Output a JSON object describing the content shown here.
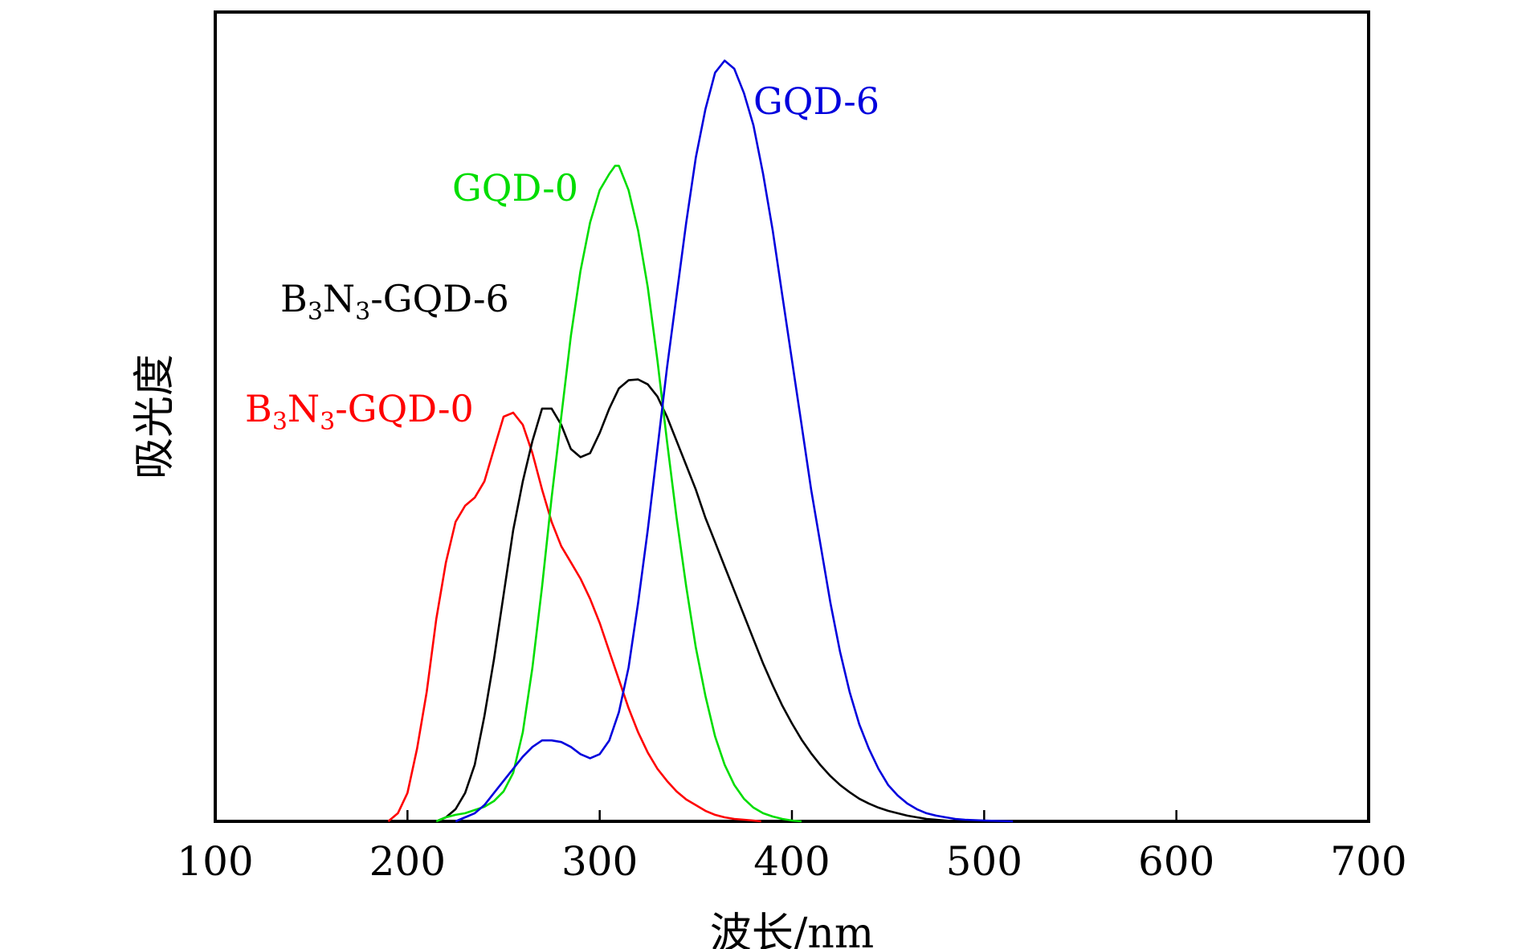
{
  "chart_data": {
    "type": "line",
    "xlabel": "波长/nm",
    "ylabel": "吸光度",
    "xlim": [
      100,
      700
    ],
    "ylim": [
      0,
      1.0
    ],
    "x_ticks": [
      "100",
      "200",
      "300",
      "400",
      "500",
      "600",
      "700"
    ],
    "y_ticks_shown": false,
    "grid": false,
    "series": [
      {
        "key": "b3n3_gqd0",
        "label": {
          "main1": "B",
          "sub1": "3",
          "main2": "N",
          "sub2": "3",
          "main3": "-GQD-0"
        },
        "color": "#ff0000",
        "points": [
          [
            190,
            0
          ],
          [
            195,
            0.01
          ],
          [
            200,
            0.035
          ],
          [
            205,
            0.09
          ],
          [
            210,
            0.16
          ],
          [
            215,
            0.25
          ],
          [
            220,
            0.32
          ],
          [
            225,
            0.37
          ],
          [
            230,
            0.39
          ],
          [
            235,
            0.4
          ],
          [
            240,
            0.42
          ],
          [
            245,
            0.46
          ],
          [
            250,
            0.5
          ],
          [
            255,
            0.505
          ],
          [
            260,
            0.49
          ],
          [
            265,
            0.455
          ],
          [
            270,
            0.41
          ],
          [
            275,
            0.37
          ],
          [
            280,
            0.34
          ],
          [
            285,
            0.32
          ],
          [
            290,
            0.3
          ],
          [
            295,
            0.275
          ],
          [
            300,
            0.245
          ],
          [
            305,
            0.21
          ],
          [
            310,
            0.175
          ],
          [
            315,
            0.14
          ],
          [
            320,
            0.11
          ],
          [
            325,
            0.085
          ],
          [
            330,
            0.065
          ],
          [
            335,
            0.05
          ],
          [
            340,
            0.037
          ],
          [
            345,
            0.027
          ],
          [
            350,
            0.02
          ],
          [
            355,
            0.013
          ],
          [
            360,
            0.008
          ],
          [
            365,
            0.005
          ],
          [
            370,
            0.003
          ],
          [
            375,
            0.002
          ],
          [
            380,
            0.001
          ],
          [
            384,
            0
          ]
        ]
      },
      {
        "key": "b3n3_gqd6",
        "label": {
          "main1": "B",
          "sub1": "3",
          "main2": "N",
          "sub2": "3",
          "main3": "-GQD-6"
        },
        "color": "#000000",
        "points": [
          [
            215,
            0
          ],
          [
            220,
            0.005
          ],
          [
            225,
            0.015
          ],
          [
            230,
            0.035
          ],
          [
            235,
            0.07
          ],
          [
            240,
            0.13
          ],
          [
            245,
            0.2
          ],
          [
            250,
            0.28
          ],
          [
            255,
            0.36
          ],
          [
            260,
            0.42
          ],
          [
            265,
            0.47
          ],
          [
            270,
            0.51
          ],
          [
            275,
            0.51
          ],
          [
            280,
            0.49
          ],
          [
            285,
            0.46
          ],
          [
            290,
            0.45
          ],
          [
            295,
            0.455
          ],
          [
            300,
            0.48
          ],
          [
            305,
            0.51
          ],
          [
            310,
            0.535
          ],
          [
            315,
            0.545
          ],
          [
            320,
            0.546
          ],
          [
            325,
            0.54
          ],
          [
            330,
            0.525
          ],
          [
            335,
            0.5
          ],
          [
            340,
            0.47
          ],
          [
            345,
            0.44
          ],
          [
            350,
            0.41
          ],
          [
            355,
            0.375
          ],
          [
            360,
            0.345
          ],
          [
            365,
            0.315
          ],
          [
            370,
            0.285
          ],
          [
            375,
            0.255
          ],
          [
            380,
            0.225
          ],
          [
            385,
            0.195
          ],
          [
            390,
            0.168
          ],
          [
            395,
            0.143
          ],
          [
            400,
            0.121
          ],
          [
            405,
            0.101
          ],
          [
            410,
            0.084
          ],
          [
            415,
            0.069
          ],
          [
            420,
            0.056
          ],
          [
            425,
            0.045
          ],
          [
            430,
            0.036
          ],
          [
            435,
            0.028
          ],
          [
            440,
            0.022
          ],
          [
            445,
            0.017
          ],
          [
            450,
            0.013
          ],
          [
            455,
            0.01
          ],
          [
            460,
            0.007
          ],
          [
            465,
            0.005
          ],
          [
            470,
            0.003
          ],
          [
            475,
            0.002
          ],
          [
            480,
            0.001
          ],
          [
            485,
            0
          ]
        ]
      },
      {
        "key": "gqd0",
        "label": {
          "main1": "GQD-0"
        },
        "color": "#00dd00",
        "points": [
          [
            215,
            0
          ],
          [
            220,
            0.005
          ],
          [
            225,
            0.008
          ],
          [
            230,
            0.01
          ],
          [
            235,
            0.014
          ],
          [
            240,
            0.018
          ],
          [
            245,
            0.025
          ],
          [
            250,
            0.037
          ],
          [
            255,
            0.06
          ],
          [
            260,
            0.11
          ],
          [
            265,
            0.19
          ],
          [
            270,
            0.29
          ],
          [
            275,
            0.4
          ],
          [
            280,
            0.5
          ],
          [
            285,
            0.6
          ],
          [
            290,
            0.68
          ],
          [
            295,
            0.74
          ],
          [
            300,
            0.78
          ],
          [
            305,
            0.8
          ],
          [
            308,
            0.81
          ],
          [
            310,
            0.81
          ],
          [
            315,
            0.78
          ],
          [
            320,
            0.73
          ],
          [
            325,
            0.66
          ],
          [
            330,
            0.57
          ],
          [
            335,
            0.47
          ],
          [
            340,
            0.375
          ],
          [
            345,
            0.29
          ],
          [
            350,
            0.215
          ],
          [
            355,
            0.155
          ],
          [
            360,
            0.105
          ],
          [
            365,
            0.07
          ],
          [
            370,
            0.045
          ],
          [
            375,
            0.028
          ],
          [
            380,
            0.017
          ],
          [
            385,
            0.01
          ],
          [
            390,
            0.006
          ],
          [
            395,
            0.003
          ],
          [
            400,
            0.001
          ],
          [
            405,
            0
          ]
        ]
      },
      {
        "key": "gqd6",
        "label": {
          "main1": "GQD-6"
        },
        "color": "#0000dd",
        "points": [
          [
            225,
            0
          ],
          [
            230,
            0.005
          ],
          [
            235,
            0.01
          ],
          [
            240,
            0.02
          ],
          [
            245,
            0.035
          ],
          [
            250,
            0.05
          ],
          [
            255,
            0.065
          ],
          [
            260,
            0.08
          ],
          [
            265,
            0.092
          ],
          [
            270,
            0.1
          ],
          [
            275,
            0.1
          ],
          [
            280,
            0.098
          ],
          [
            285,
            0.092
          ],
          [
            290,
            0.083
          ],
          [
            295,
            0.078
          ],
          [
            300,
            0.083
          ],
          [
            305,
            0.1
          ],
          [
            310,
            0.135
          ],
          [
            315,
            0.19
          ],
          [
            320,
            0.27
          ],
          [
            325,
            0.36
          ],
          [
            330,
            0.46
          ],
          [
            335,
            0.56
          ],
          [
            340,
            0.65
          ],
          [
            345,
            0.74
          ],
          [
            350,
            0.82
          ],
          [
            355,
            0.88
          ],
          [
            360,
            0.925
          ],
          [
            365,
            0.94
          ],
          [
            370,
            0.93
          ],
          [
            375,
            0.9
          ],
          [
            380,
            0.86
          ],
          [
            385,
            0.8
          ],
          [
            390,
            0.73
          ],
          [
            395,
            0.65
          ],
          [
            400,
            0.57
          ],
          [
            405,
            0.49
          ],
          [
            410,
            0.41
          ],
          [
            415,
            0.34
          ],
          [
            420,
            0.27
          ],
          [
            425,
            0.21
          ],
          [
            430,
            0.16
          ],
          [
            435,
            0.12
          ],
          [
            440,
            0.09
          ],
          [
            445,
            0.065
          ],
          [
            450,
            0.045
          ],
          [
            455,
            0.032
          ],
          [
            460,
            0.022
          ],
          [
            465,
            0.015
          ],
          [
            470,
            0.01
          ],
          [
            475,
            0.007
          ],
          [
            480,
            0.005
          ],
          [
            485,
            0.003
          ],
          [
            490,
            0.002
          ],
          [
            500,
            0.001
          ],
          [
            515,
            0
          ]
        ]
      }
    ]
  }
}
